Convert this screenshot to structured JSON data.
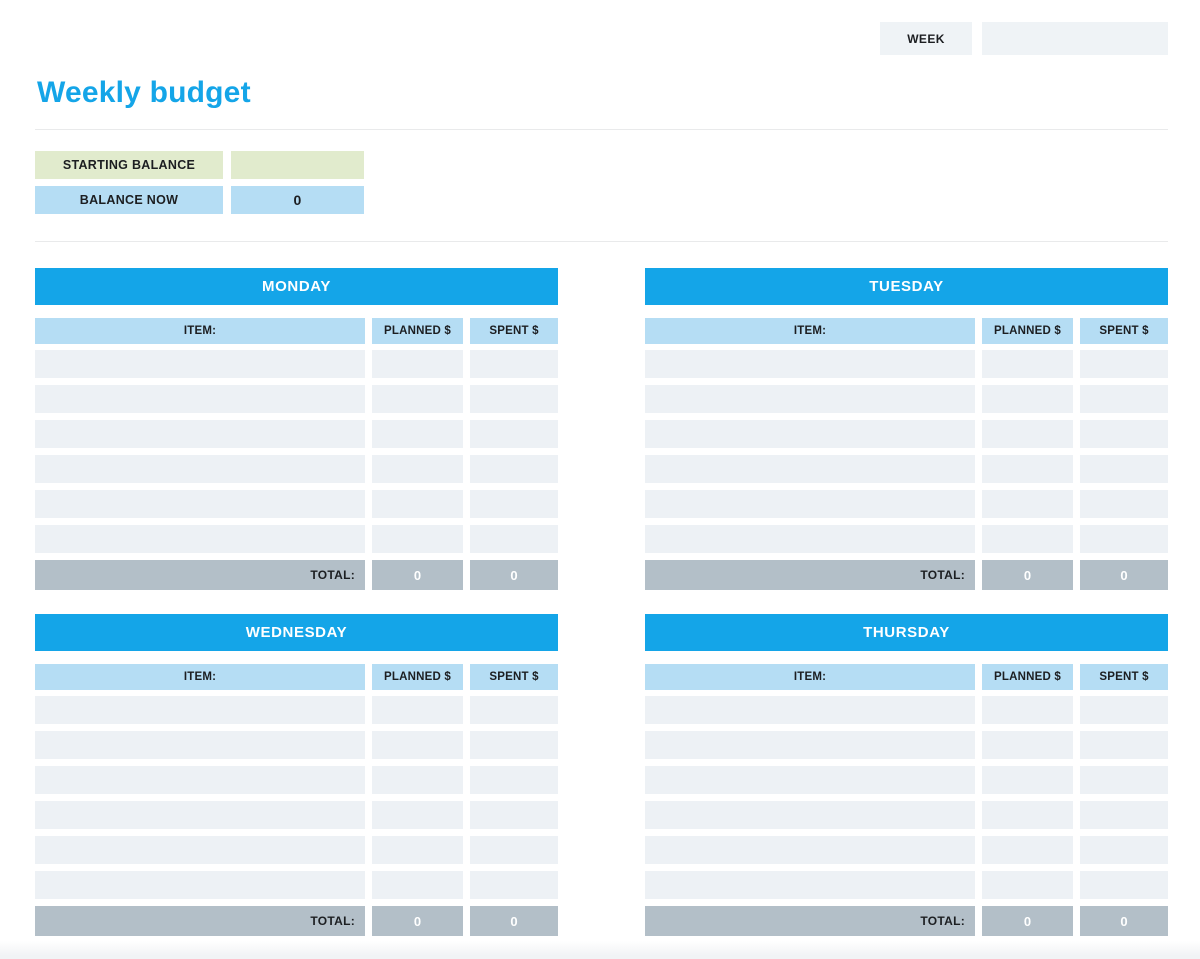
{
  "week": {
    "label": "WEEK",
    "value": ""
  },
  "page": {
    "title": "Weekly budget"
  },
  "balance": {
    "starting_label": "STARTING BALANCE",
    "starting_value": "",
    "now_label": "BALANCE NOW",
    "now_value": "0"
  },
  "table": {
    "item_header": "ITEM:",
    "planned_header": "PLANNED $",
    "spent_header": "SPENT $",
    "total_label": "TOTAL:",
    "empty_rows_per_day": 6
  },
  "days": [
    {
      "name": "MONDAY",
      "total_planned": "0",
      "total_spent": "0"
    },
    {
      "name": "TUESDAY",
      "total_planned": "0",
      "total_spent": "0"
    },
    {
      "name": "WEDNESDAY",
      "total_planned": "0",
      "total_spent": "0"
    },
    {
      "name": "THURSDAY",
      "total_planned": "0",
      "total_spent": "0"
    }
  ],
  "colors": {
    "accent_blue": "#14a5e8",
    "light_blue": "#b5ddf4",
    "light_green": "#e1ebcd",
    "row_bg": "#edf1f5",
    "total_gray": "#b3bfc8",
    "field_bg": "#eff3f6",
    "title_blue": "#14a5e8"
  }
}
